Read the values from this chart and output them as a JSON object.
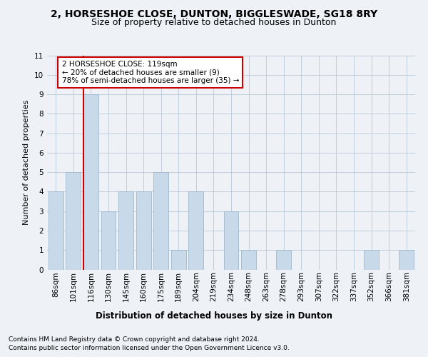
{
  "title": "2, HORSESHOE CLOSE, DUNTON, BIGGLESWADE, SG18 8RY",
  "subtitle": "Size of property relative to detached houses in Dunton",
  "xlabel": "Distribution of detached houses by size in Dunton",
  "ylabel": "Number of detached properties",
  "categories": [
    "86sqm",
    "101sqm",
    "116sqm",
    "130sqm",
    "145sqm",
    "160sqm",
    "175sqm",
    "189sqm",
    "204sqm",
    "219sqm",
    "234sqm",
    "248sqm",
    "263sqm",
    "278sqm",
    "293sqm",
    "307sqm",
    "322sqm",
    "337sqm",
    "352sqm",
    "366sqm",
    "381sqm"
  ],
  "values": [
    4,
    5,
    9,
    3,
    4,
    4,
    5,
    1,
    4,
    0,
    3,
    1,
    0,
    1,
    0,
    0,
    0,
    0,
    1,
    0,
    1
  ],
  "bar_color": "#c8d9ea",
  "bar_edgecolor": "#a0b8cc",
  "redline_index": 2,
  "redline_color": "#cc0000",
  "ylim": [
    0,
    11
  ],
  "yticks": [
    0,
    1,
    2,
    3,
    4,
    5,
    6,
    7,
    8,
    9,
    10,
    11
  ],
  "annotation_text": "2 HORSESHOE CLOSE: 119sqm\n← 20% of detached houses are smaller (9)\n78% of semi-detached houses are larger (35) →",
  "annotation_box_color": "#ffffff",
  "annotation_box_edgecolor": "#cc0000",
  "footer_line1": "Contains HM Land Registry data © Crown copyright and database right 2024.",
  "footer_line2": "Contains public sector information licensed under the Open Government Licence v3.0.",
  "background_color": "#eef2f7",
  "plot_background_color": "#eef2f7",
  "grid_color": "#b8c8d8",
  "title_fontsize": 10,
  "subtitle_fontsize": 9,
  "xlabel_fontsize": 8.5,
  "ylabel_fontsize": 8,
  "tick_fontsize": 7.5,
  "annotation_fontsize": 7.5,
  "footer_fontsize": 6.5
}
